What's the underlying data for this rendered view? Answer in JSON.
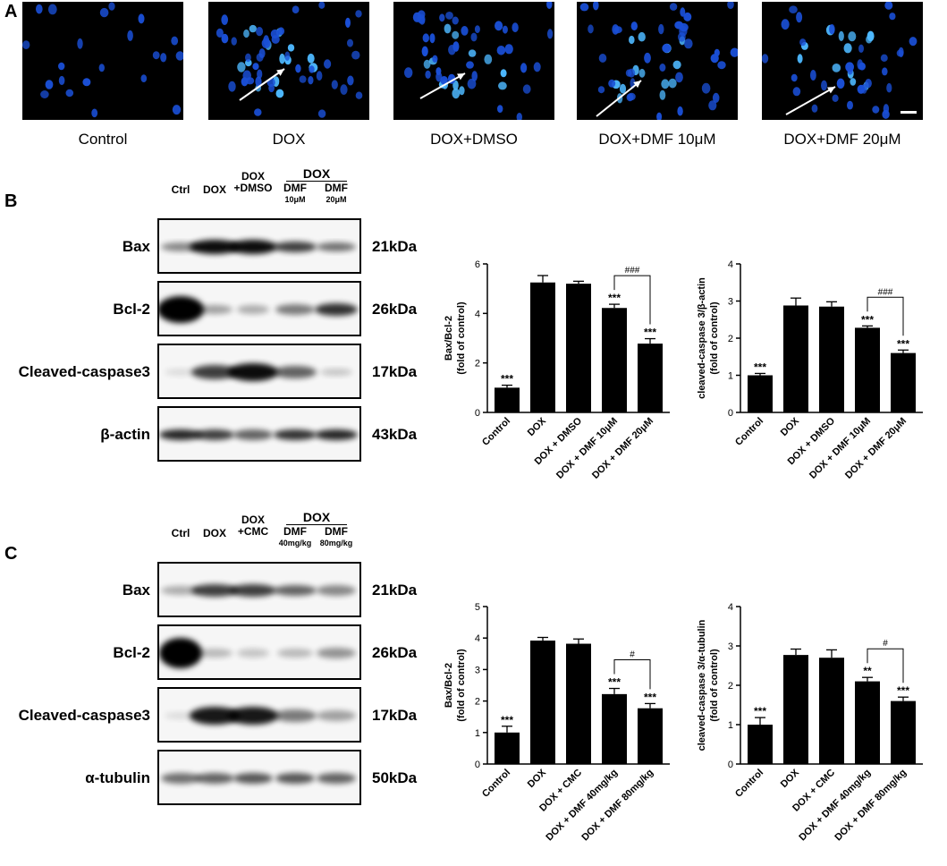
{
  "panels": {
    "A": "A",
    "B": "B",
    "C": "C"
  },
  "micrographs": [
    {
      "caption": "Control"
    },
    {
      "caption": "DOX"
    },
    {
      "caption": "DOX+DMSO"
    },
    {
      "caption": "DOX+DMF 10μM"
    },
    {
      "caption": "DOX+DMF 20μM"
    }
  ],
  "blot_b": {
    "group_header": "DOX",
    "lanes": [
      {
        "label": "Ctrl",
        "sub": ""
      },
      {
        "label": "DOX",
        "sub": ""
      },
      {
        "label": "DOX\n+DMSO",
        "sub": ""
      },
      {
        "label": "DMF",
        "sub": "10μM"
      },
      {
        "label": "DMF",
        "sub": "20μM"
      }
    ],
    "rows": [
      {
        "protein": "Bax",
        "kda": "21kDa"
      },
      {
        "protein": "Bcl-2",
        "kda": "26kDa"
      },
      {
        "protein": "Cleaved-caspase3",
        "kda": "17kDa"
      },
      {
        "protein": "β-actin",
        "kda": "43kDa"
      }
    ]
  },
  "blot_c": {
    "group_header": "DOX",
    "lanes": [
      {
        "label": "Ctrl",
        "sub": ""
      },
      {
        "label": "DOX",
        "sub": ""
      },
      {
        "label": "DOX\n+CMC",
        "sub": ""
      },
      {
        "label": "DMF",
        "sub": "40mg/kg"
      },
      {
        "label": "DMF",
        "sub": "80mg/kg"
      }
    ],
    "rows": [
      {
        "protein": "Bax",
        "kda": "21kDa"
      },
      {
        "protein": "Bcl-2",
        "kda": "26kDa"
      },
      {
        "protein": "Cleaved-caspase3",
        "kda": "17kDa"
      },
      {
        "protein": "α-tubulin",
        "kda": "50kDa"
      }
    ]
  },
  "chart_data": [
    {
      "type": "bar",
      "categories": [
        "Control",
        "DOX",
        "DOX + DMSO",
        "DOX + DMF 10μM",
        "DOX + DMF 20μM"
      ],
      "values": [
        1.0,
        5.25,
        5.2,
        4.22,
        2.78
      ],
      "errors": [
        0.1,
        0.28,
        0.1,
        0.15,
        0.2
      ],
      "annotations": [
        "***",
        "",
        "",
        "***",
        "***"
      ],
      "comparison": {
        "from": 3,
        "to": 4,
        "label": "###"
      },
      "ylabel": "Bax/Bcl-2\n(fold of control)",
      "ylim": [
        0,
        6
      ],
      "yticks": [
        "0",
        "2",
        "4",
        "6"
      ],
      "ytick_values": [
        0,
        2,
        4,
        6
      ]
    },
    {
      "type": "bar",
      "categories": [
        "Control",
        "DOX",
        "DOX + DMSO",
        "DOX + DMF 10μM",
        "DOX + DMF 20μM"
      ],
      "values": [
        1.0,
        2.88,
        2.85,
        2.28,
        1.6
      ],
      "errors": [
        0.05,
        0.2,
        0.13,
        0.05,
        0.08
      ],
      "annotations": [
        "***",
        "",
        "",
        "***",
        "***"
      ],
      "comparison": {
        "from": 3,
        "to": 4,
        "label": "###"
      },
      "ylabel": "cleaved-caspase 3/β-actin\n(fold of control)",
      "ylim": [
        0,
        4
      ],
      "yticks": [
        "0",
        "1",
        "2",
        "3",
        "4"
      ],
      "ytick_values": [
        0,
        1,
        2,
        3,
        4
      ]
    },
    {
      "type": "bar",
      "categories": [
        "Control",
        "DOX",
        "DOX + CMC",
        "DOX + DMF 40mg/kg",
        "DOX + DMF 80mg/kg"
      ],
      "values": [
        1.0,
        3.92,
        3.82,
        2.22,
        1.77
      ],
      "errors": [
        0.2,
        0.1,
        0.15,
        0.18,
        0.15
      ],
      "annotations": [
        "***",
        "",
        "",
        "***",
        "***"
      ],
      "comparison": {
        "from": 3,
        "to": 4,
        "label": "#"
      },
      "ylabel": "Bax/Bcl-2\n(fold of control)",
      "ylim": [
        0,
        5
      ],
      "yticks": [
        "0",
        "1",
        "2",
        "3",
        "4",
        "5"
      ],
      "ytick_values": [
        0,
        1,
        2,
        3,
        4,
        5
      ]
    },
    {
      "type": "bar",
      "categories": [
        "Control",
        "DOX",
        "DOX + CMC",
        "DOX + DMF 40mg/kg",
        "DOX + DMF 80mg/kg"
      ],
      "values": [
        1.0,
        2.77,
        2.7,
        2.1,
        1.6
      ],
      "errors": [
        0.18,
        0.15,
        0.2,
        0.1,
        0.1
      ],
      "annotations": [
        "***",
        "",
        "",
        "**",
        "***"
      ],
      "comparison": {
        "from": 3,
        "to": 4,
        "label": "#"
      },
      "ylabel": "cleaved-caspase 3/α-tubulin\n(fold of control)",
      "ylim": [
        0,
        4
      ],
      "yticks": [
        "0",
        "1",
        "2",
        "3",
        "4"
      ],
      "ytick_values": [
        0,
        1,
        2,
        3,
        4
      ]
    }
  ]
}
